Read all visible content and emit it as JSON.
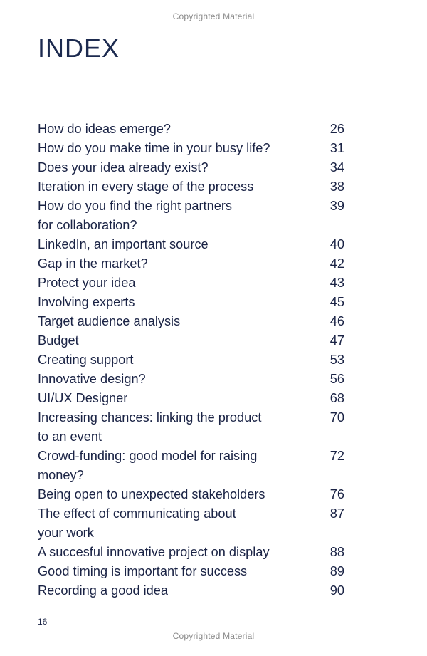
{
  "watermark": "Copyrighted Material",
  "title": "INDEX",
  "entries": [
    {
      "text": "How do ideas emerge?",
      "page": "26"
    },
    {
      "text": "How do you make time in your busy life?",
      "page": "31"
    },
    {
      "text": "Does your idea already exist?",
      "page": "34"
    },
    {
      "text": "Iteration in every stage of the process",
      "page": "38"
    },
    {
      "text": "How do you find the right partners\nfor collaboration?",
      "page": "39"
    },
    {
      "text": "LinkedIn, an important source",
      "page": "40"
    },
    {
      "text": "Gap in the market?",
      "page": "42"
    },
    {
      "text": "Protect your idea",
      "page": "43"
    },
    {
      "text": "Involving experts",
      "page": "45"
    },
    {
      "text": "Target audience analysis",
      "page": "46"
    },
    {
      "text": "Budget",
      "page": "47"
    },
    {
      "text": "Creating support",
      "page": "53"
    },
    {
      "text": "Innovative design?",
      "page": "56"
    },
    {
      "text": "UI/UX Designer",
      "page": "68"
    },
    {
      "text": "Increasing chances: linking the product\nto an event",
      "page": "70"
    },
    {
      "text": "Crowd-funding: good model for raising\nmoney?",
      "page": "72"
    },
    {
      "text": "Being open to unexpected stakeholders",
      "page": "76"
    },
    {
      "text": "The effect of communicating about\nyour work",
      "page": "87"
    },
    {
      "text": "A succesful innovative project on display",
      "page": "88"
    },
    {
      "text": "Good timing is important for success",
      "page": "89"
    },
    {
      "text": "Recording a good idea",
      "page": "90"
    }
  ],
  "page_number": "16"
}
